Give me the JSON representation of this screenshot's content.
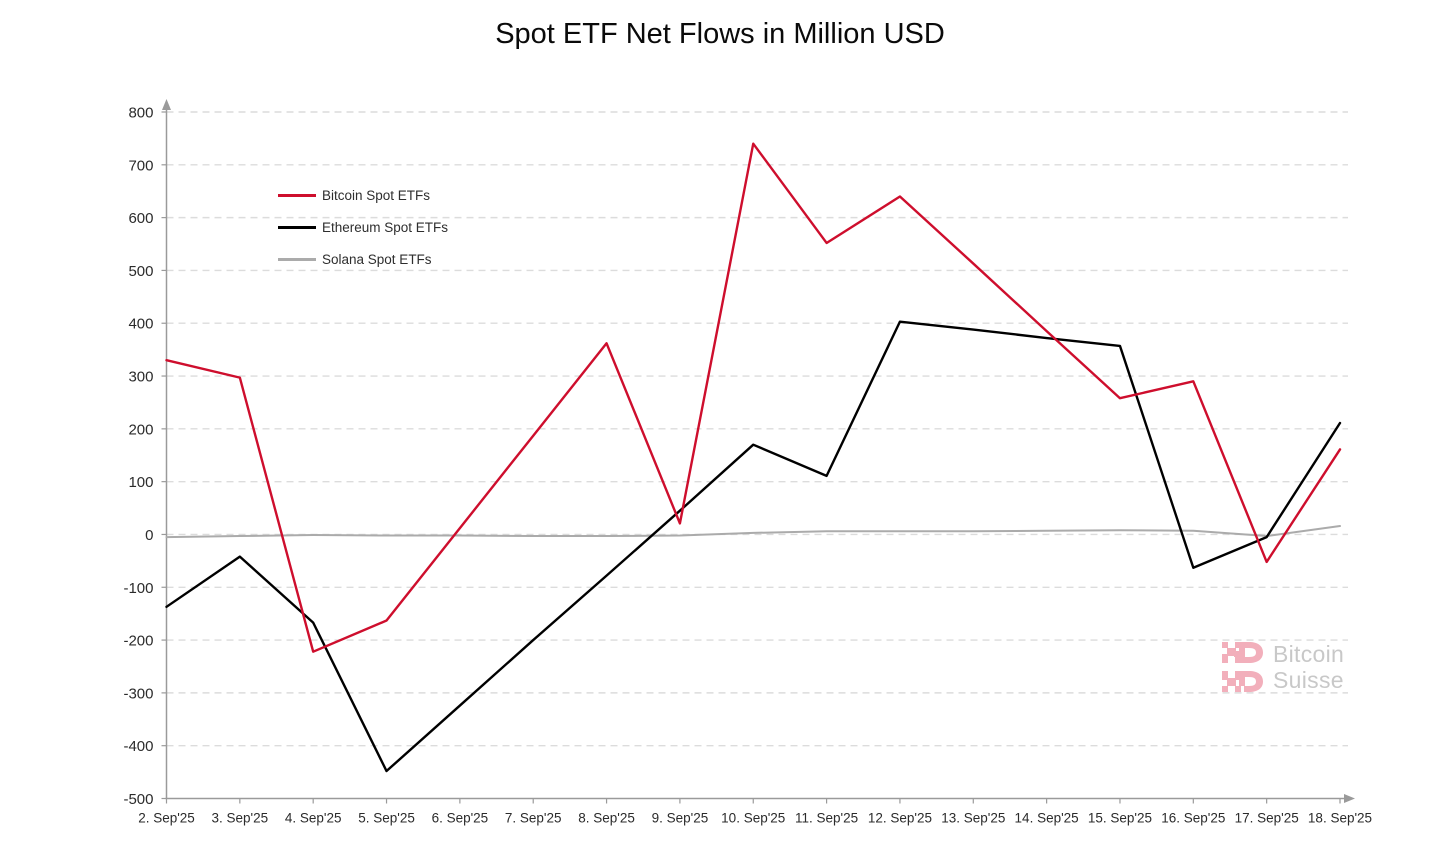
{
  "title": "Spot ETF Net Flows in Million USD",
  "watermark": {
    "line1": "Bitcoin",
    "line2": "Suisse",
    "logo_color": "#F2ABB8",
    "text_color": "#C6C6C6"
  },
  "axis": {
    "label_color": "#2b2b2b",
    "axis_color": "#9a9a9a",
    "grid_color": "#dcdcdc"
  },
  "chart_data": {
    "type": "line",
    "title": "Spot ETF Net Flows in Million USD",
    "xlabel": "",
    "ylabel": "",
    "ylim": [
      -500,
      800
    ],
    "ytick_step": 100,
    "yticks": [
      800,
      700,
      600,
      500,
      400,
      300,
      200,
      100,
      0,
      -100,
      -200,
      -300,
      -400,
      -500
    ],
    "grid": "horizontal-dashed",
    "legend_position": "top-left-inside",
    "categories": [
      "2. Sep'25",
      "3. Sep'25",
      "4. Sep'25",
      "5. Sep'25",
      "6. Sep'25",
      "7. Sep'25",
      "8. Sep'25",
      "9. Sep'25",
      "10. Sep'25",
      "11. Sep'25",
      "12. Sep'25",
      "13. Sep'25",
      "14. Sep'25",
      "15. Sep'25",
      "16. Sep'25",
      "17. Sep'25",
      "18. Sep'25"
    ],
    "series": [
      {
        "name": "Bitcoin Spot ETFs",
        "color": "#CE0E2D",
        "values": [
          330,
          297,
          -222,
          -163,
          12,
          187,
          362,
          21,
          740,
          552,
          640,
          513,
          385,
          258,
          290,
          -52,
          161
        ]
      },
      {
        "name": "Ethereum Spot ETFs",
        "color": "#000000",
        "values": [
          -137,
          -42,
          -167,
          -448,
          -324,
          -200,
          -78,
          45,
          170,
          111,
          403,
          388,
          372,
          357,
          -63,
          -5,
          211
        ]
      },
      {
        "name": "Solana Spot ETFs",
        "color": "#ABABAB",
        "values": [
          -5,
          -3,
          -1,
          -2,
          -2,
          -3,
          -3,
          -2,
          3,
          6,
          6,
          6,
          7,
          8,
          7,
          -3,
          16
        ]
      }
    ]
  }
}
